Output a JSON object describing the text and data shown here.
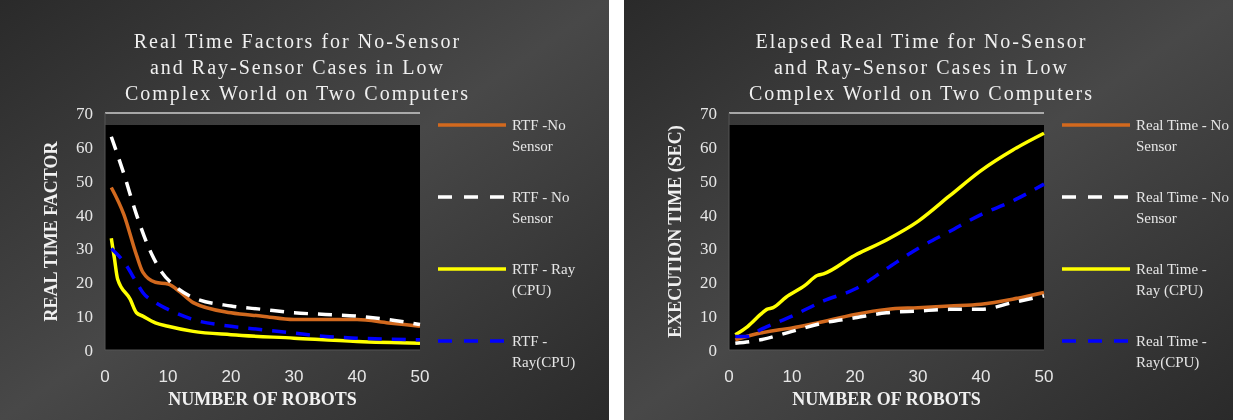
{
  "chart_data": [
    {
      "type": "line",
      "title": "Real Time Factors for No-Sensor and Ray-Sensor Cases in Low Complex World on Two Computers",
      "xlabel": "NUMBER OF ROBOTS",
      "ylabel": "REAL TIME FACTOR",
      "xlim": [
        0,
        50
      ],
      "ylim": [
        0,
        70
      ],
      "xticks": [
        0,
        10,
        20,
        30,
        40,
        50
      ],
      "yticks": [
        0,
        10,
        20,
        30,
        40,
        50,
        60,
        70
      ],
      "grid": false,
      "legend": "right",
      "series": [
        {
          "name": "RTF -No Sensor",
          "color": "#d2691e",
          "line_style": "solid",
          "x": [
            1,
            3,
            5,
            6,
            8,
            10,
            12,
            14,
            20,
            25,
            30,
            35,
            40,
            45,
            50
          ],
          "values": [
            48,
            40,
            28,
            23,
            20,
            19.5,
            17,
            14,
            11,
            10,
            9,
            9,
            9,
            8,
            7
          ]
        },
        {
          "name": "RTF - No Sensor",
          "color": "#ffffff",
          "line_style": "dashed",
          "x": [
            1,
            3,
            5,
            7,
            9,
            11,
            14,
            20,
            25,
            30,
            35,
            40,
            45,
            50
          ],
          "values": [
            63,
            52,
            40,
            30,
            23,
            19,
            15.5,
            13,
            12,
            11,
            10.5,
            10,
            9,
            7.5
          ]
        },
        {
          "name": "RTF - Ray (CPU)",
          "color": "#ffff00",
          "line_style": "solid",
          "x": [
            1,
            1.5,
            2,
            4,
            5,
            6,
            8,
            10,
            14,
            20,
            30,
            40,
            50
          ],
          "values": [
            33,
            27,
            21,
            15,
            11,
            10,
            8,
            7,
            5.5,
            4.5,
            3.5,
            2.5,
            2
          ]
        },
        {
          "name": "RTF - Ray(CPU)",
          "color": "#0000ff",
          "line_style": "dashed",
          "x": [
            1,
            3,
            5,
            6,
            8,
            10,
            14,
            20,
            25,
            30,
            35,
            40,
            50
          ],
          "values": [
            30,
            26,
            20,
            17,
            14,
            12,
            9,
            7,
            6,
            5,
            4,
            3.5,
            3
          ]
        }
      ]
    },
    {
      "type": "line",
      "title": "Elapsed Real Time for No-Sensor and Ray-Sensor Cases in Low Complex World on Two Computers",
      "xlabel": "NUMBER OF ROBOTS",
      "ylabel": "EXECUTION TIME (SEC)",
      "xlim": [
        0,
        50
      ],
      "ylim": [
        0,
        70
      ],
      "xticks": [
        0,
        10,
        20,
        30,
        40,
        50
      ],
      "yticks": [
        0,
        10,
        20,
        30,
        40,
        50,
        60,
        70
      ],
      "grid": false,
      "legend": "right",
      "series": [
        {
          "name": "Real Time - No Sensor",
          "color": "#d2691e",
          "line_style": "solid",
          "x": [
            1,
            5,
            8,
            10,
            14,
            20,
            25,
            30,
            35,
            40,
            45,
            50
          ],
          "values": [
            3,
            5,
            6,
            6.5,
            8,
            10.5,
            12,
            12.5,
            13,
            13.5,
            15,
            17
          ]
        },
        {
          "name": "Real Time - No Sensor",
          "color": "#ffffff",
          "line_style": "dashed",
          "x": [
            1,
            5,
            10,
            15,
            20,
            25,
            30,
            35,
            40,
            45,
            50
          ],
          "values": [
            2,
            3,
            5.5,
            8,
            9.5,
            11,
            11.5,
            12,
            12,
            14,
            16
          ]
        },
        {
          "name": "Real Time - Ray (CPU)",
          "color": "#ffff00",
          "line_style": "solid",
          "x": [
            1,
            3,
            5,
            6,
            7,
            9,
            12,
            14,
            15,
            20,
            25,
            30,
            35,
            40,
            45,
            50
          ],
          "values": [
            4.5,
            7,
            10.5,
            12,
            12.5,
            15.5,
            19,
            22,
            22.5,
            28,
            32.5,
            38,
            45.5,
            53,
            59,
            64
          ]
        },
        {
          "name": "Real Time - Ray(CPU)",
          "color": "#0000ff",
          "line_style": "dashed",
          "x": [
            1,
            3,
            5,
            10,
            15,
            20,
            25,
            30,
            35,
            40,
            45,
            50
          ],
          "values": [
            4,
            4,
            6,
            10,
            14.5,
            18,
            24,
            30,
            35,
            40,
            44,
            49
          ]
        }
      ]
    }
  ]
}
